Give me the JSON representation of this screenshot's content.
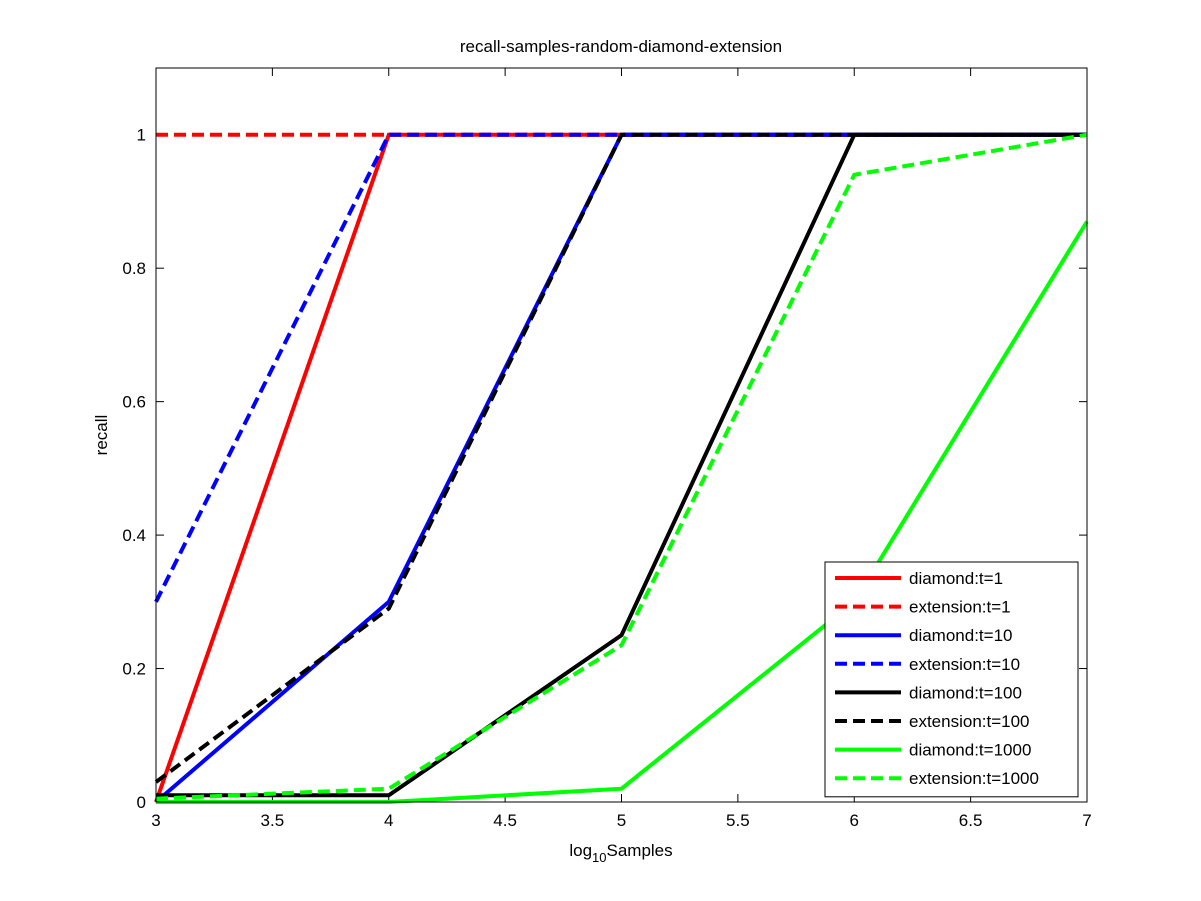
{
  "chart_data": {
    "type": "line",
    "title": "recall-samples-random-diamond-extension",
    "xlabel": {
      "base": "log",
      "sub": "10",
      "rest": "Samples"
    },
    "ylabel": "recall",
    "xlim": [
      3,
      7
    ],
    "ylim": [
      0,
      1.1
    ],
    "xticks": [
      "3",
      "3.5",
      "4",
      "4.5",
      "5",
      "5.5",
      "6",
      "6.5",
      "7"
    ],
    "yticks": [
      "0",
      "0.2",
      "0.4",
      "0.6",
      "0.8",
      "1"
    ],
    "legend_position": "bottom-right",
    "series": [
      {
        "name": "diamond:t=1",
        "color": "#ff0000",
        "dash": "solid",
        "x": [
          3,
          4,
          5,
          6,
          7
        ],
        "y": [
          0.0,
          1.0,
          1.0,
          1.0,
          1.0
        ]
      },
      {
        "name": "extension:t=1",
        "color": "#ff0000",
        "dash": "dashed",
        "x": [
          3,
          4,
          5,
          6,
          7
        ],
        "y": [
          1.0,
          1.0,
          1.0,
          1.0,
          1.0
        ]
      },
      {
        "name": "diamond:t=10",
        "color": "#0000ff",
        "dash": "solid",
        "x": [
          3,
          4,
          5,
          6,
          7
        ],
        "y": [
          0.0,
          0.3,
          1.0,
          1.0,
          1.0
        ]
      },
      {
        "name": "extension:t=10",
        "color": "#0000ff",
        "dash": "dashed",
        "x": [
          3,
          4,
          5,
          6,
          7
        ],
        "y": [
          0.3,
          1.0,
          1.0,
          1.0,
          1.0
        ]
      },
      {
        "name": "diamond:t=100",
        "color": "#000000",
        "dash": "solid",
        "x": [
          3,
          4,
          5,
          6,
          7
        ],
        "y": [
          0.01,
          0.01,
          0.25,
          1.0,
          1.0
        ]
      },
      {
        "name": "extension:t=100",
        "color": "#000000",
        "dash": "dashed",
        "x": [
          3,
          4,
          5,
          6,
          7
        ],
        "y": [
          0.03,
          0.29,
          1.0,
          1.0,
          1.0
        ]
      },
      {
        "name": "diamond:t=1000",
        "color": "#00ff00",
        "dash": "solid",
        "x": [
          3,
          4,
          5,
          6,
          7
        ],
        "y": [
          0.0,
          0.0,
          0.02,
          0.3,
          0.87
        ]
      },
      {
        "name": "extension:t=1000",
        "color": "#00ff00",
        "dash": "dashed",
        "x": [
          3,
          4,
          5,
          6,
          7
        ],
        "y": [
          0.005,
          0.02,
          0.235,
          0.94,
          1.0
        ]
      }
    ]
  }
}
